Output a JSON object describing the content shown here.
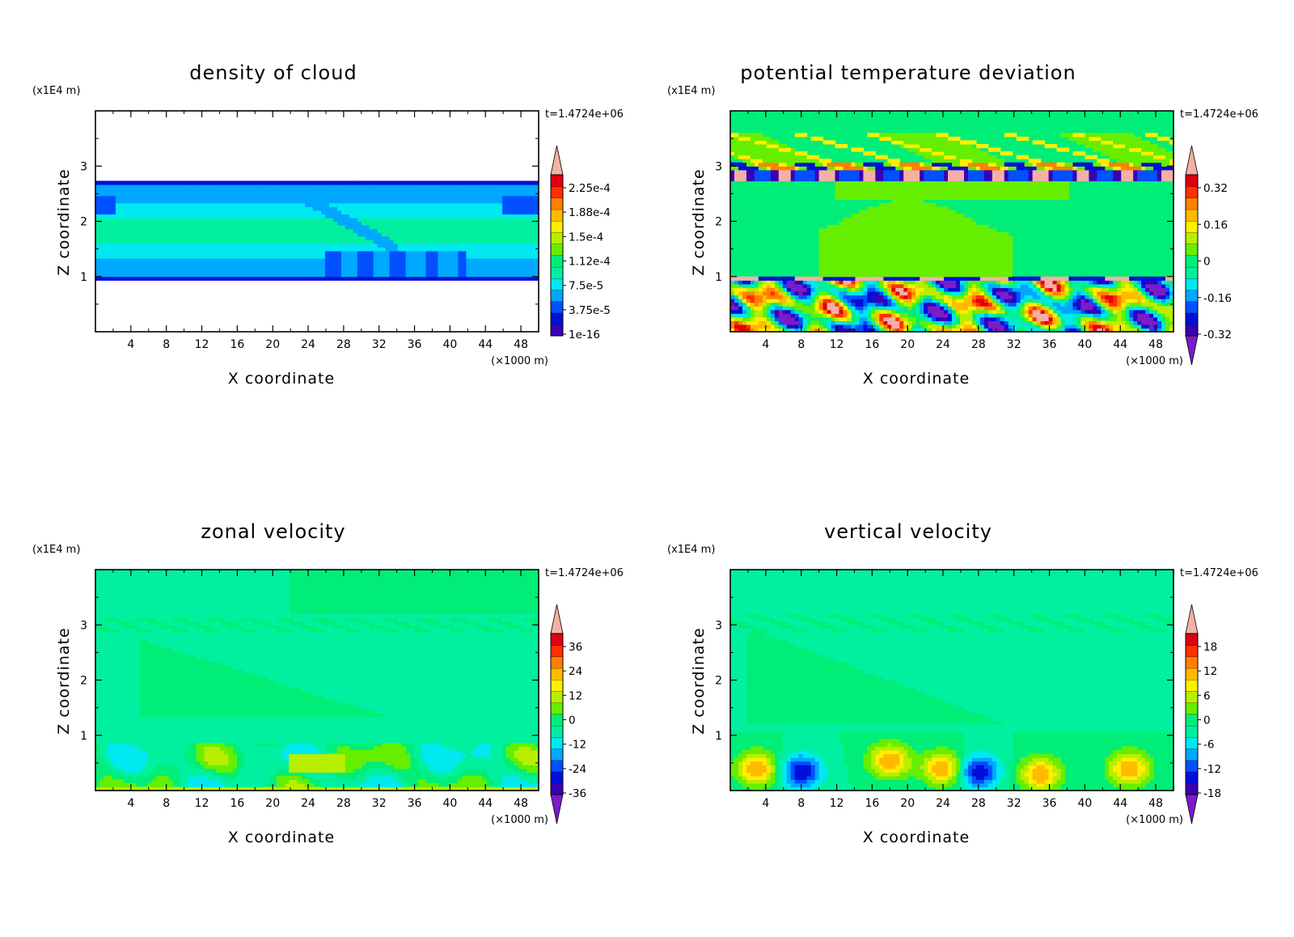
{
  "chart_data": [
    {
      "type": "heatmap",
      "title": "density of cloud",
      "xlabel": "X coordinate",
      "ylabel": "Z coordinate",
      "x_unit": "(×1000 m)",
      "y_unit": "(x1E4 m)",
      "time_label": "t=1.4724e+06",
      "xlim": [
        0,
        50
      ],
      "ylim": [
        0,
        4
      ],
      "x_ticks": [
        "4",
        "8",
        "12",
        "16",
        "20",
        "24",
        "28",
        "32",
        "36",
        "40",
        "44",
        "48"
      ],
      "y_ticks": [
        "1",
        "2",
        "3"
      ],
      "colorbar_labels": [
        "2.25e-4",
        "1.88e-4",
        "1.5e-4",
        "1.12e-4",
        "7.5e-5",
        "3.75e-5",
        "1e-16"
      ],
      "field": "cloud_layer",
      "cloud_layer_z": [
        0.95,
        2.75
      ]
    },
    {
      "type": "heatmap",
      "title": "potential temperature deviation",
      "xlabel": "X coordinate",
      "ylabel": "Z coordinate",
      "x_unit": "(×1000 m)",
      "y_unit": "(x1E4 m)",
      "time_label": "t=1.4724e+06",
      "xlim": [
        0,
        50
      ],
      "ylim": [
        0,
        4
      ],
      "x_ticks": [
        "4",
        "8",
        "12",
        "16",
        "20",
        "24",
        "28",
        "32",
        "36",
        "40",
        "44",
        "48"
      ],
      "y_ticks": [
        "1",
        "2",
        "3"
      ],
      "colorbar_labels": [
        "0.32",
        "0.16",
        "0",
        "-0.16",
        "-0.32"
      ],
      "field": "theta_dev"
    },
    {
      "type": "heatmap",
      "title": "zonal velocity",
      "xlabel": "X coordinate",
      "ylabel": "Z coordinate",
      "x_unit": "(×1000 m)",
      "y_unit": "(x1E4 m)",
      "time_label": "t=1.4724e+06",
      "xlim": [
        0,
        50
      ],
      "ylim": [
        0,
        4
      ],
      "x_ticks": [
        "4",
        "8",
        "12",
        "16",
        "20",
        "24",
        "28",
        "32",
        "36",
        "40",
        "44",
        "48"
      ],
      "y_ticks": [
        "1",
        "2",
        "3"
      ],
      "colorbar_labels": [
        "36",
        "24",
        "12",
        "0",
        "-12",
        "-24",
        "-36"
      ],
      "field": "zonal"
    },
    {
      "type": "heatmap",
      "title": "vertical velocity",
      "xlabel": "X coordinate",
      "ylabel": "Z coordinate",
      "x_unit": "(×1000 m)",
      "y_unit": "(x1E4 m)",
      "time_label": "t=1.4724e+06",
      "xlim": [
        0,
        50
      ],
      "ylim": [
        0,
        4
      ],
      "x_ticks": [
        "4",
        "8",
        "12",
        "16",
        "20",
        "24",
        "28",
        "32",
        "36",
        "40",
        "44",
        "48"
      ],
      "y_ticks": [
        "1",
        "2",
        "3"
      ],
      "colorbar_labels": [
        "18",
        "12",
        "6",
        "0",
        "-6",
        "-12",
        "-18"
      ],
      "field": "vertical"
    }
  ],
  "colors": {
    "palette": [
      "#7a1cc9",
      "#3a00b4",
      "#0010d8",
      "#0050ff",
      "#00a8ff",
      "#00e8f0",
      "#00f0a0",
      "#00ee78",
      "#66ee00",
      "#b8ee00",
      "#ffee00",
      "#ffba00",
      "#ff8000",
      "#ff3000",
      "#e00010",
      "#f4b0a4"
    ]
  }
}
